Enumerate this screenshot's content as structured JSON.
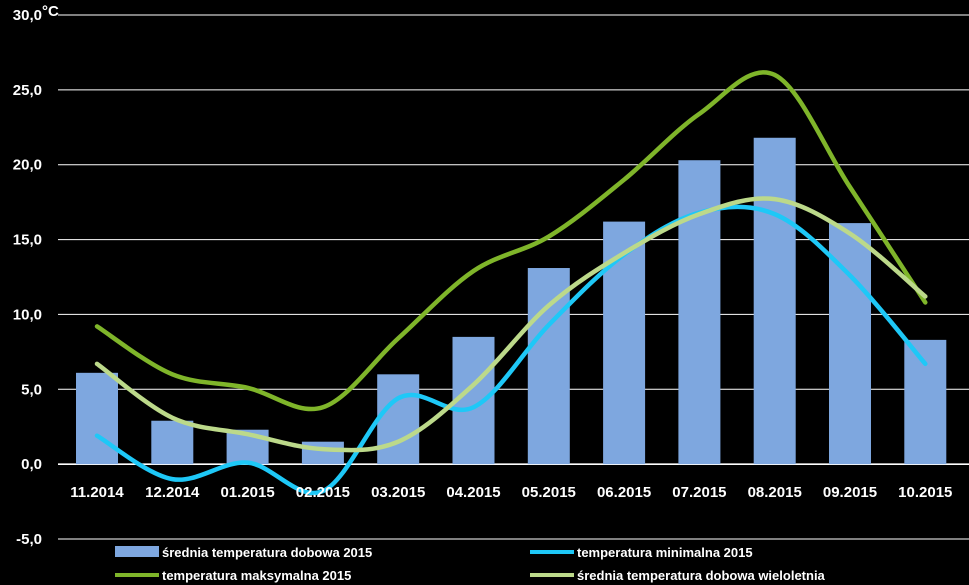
{
  "chart_data": {
    "type": "bar",
    "unit_label": "°C",
    "categories": [
      "11.2014",
      "12.2014",
      "01.2015",
      "02.2015",
      "03.2015",
      "04.2015",
      "05.2015",
      "06.2015",
      "07.2015",
      "08.2015",
      "09.2015",
      "10.2015"
    ],
    "ylim": [
      -5,
      30
    ],
    "yticks": [
      "30,0",
      "25,0",
      "20,0",
      "15,0",
      "10,0",
      "5,0",
      "0,0",
      "-5,0"
    ],
    "grid": true,
    "legend_position": "bottom",
    "series": [
      {
        "name": "średnia temperatura dobowa 2015",
        "kind": "bar",
        "color": "#7ea7df",
        "values": [
          6.1,
          2.9,
          2.3,
          1.5,
          6.0,
          8.5,
          13.1,
          16.2,
          20.3,
          21.8,
          16.1,
          8.3
        ]
      },
      {
        "name": "temperatura minimalna 2015",
        "kind": "line",
        "color": "#1ec8f7",
        "values": [
          1.9,
          -1.0,
          0.1,
          -1.8,
          4.4,
          3.8,
          9.3,
          14.0,
          16.8,
          16.7,
          12.6,
          6.7
        ]
      },
      {
        "name": "temperatura maksymalna 2015",
        "kind": "line",
        "color": "#7fb52a",
        "values": [
          9.2,
          6.0,
          5.1,
          3.8,
          8.4,
          12.9,
          15.2,
          19.0,
          23.4,
          26.0,
          18.5,
          10.8
        ]
      },
      {
        "name": "średnia temperatura dobowa wieloletnia",
        "kind": "line",
        "color": "#bcd98a",
        "values": [
          6.7,
          3.1,
          2.0,
          1.0,
          1.5,
          5.3,
          10.6,
          14.1,
          16.7,
          17.7,
          15.4,
          11.2
        ]
      }
    ]
  }
}
